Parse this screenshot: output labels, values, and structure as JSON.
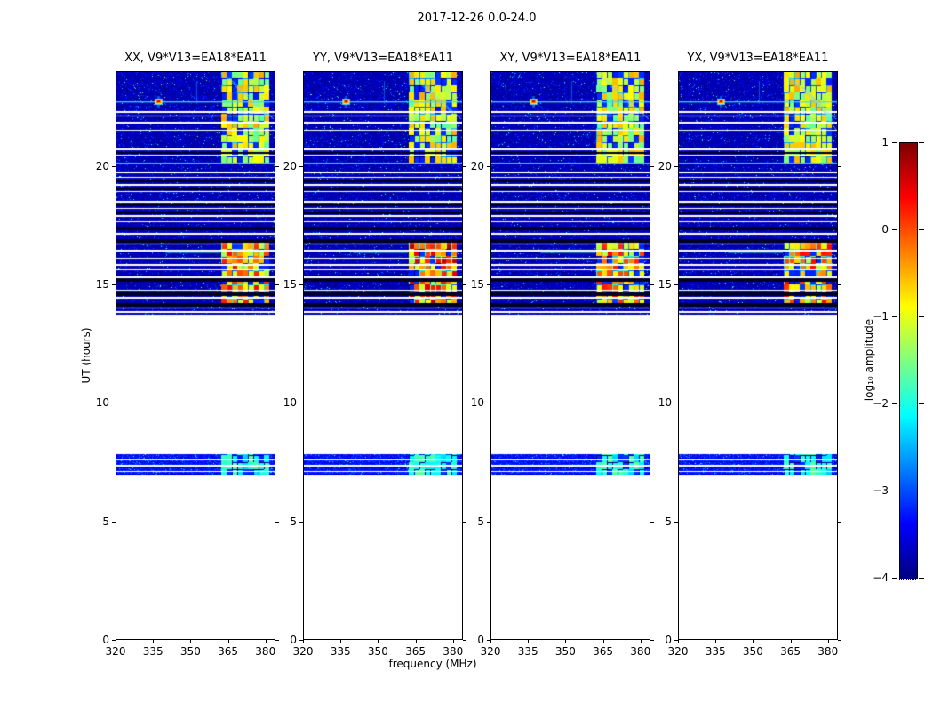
{
  "chart_data": {
    "type": "heatmap",
    "title": "2017-12-26 0.0-24.0",
    "xlabel": "frequency (MHz)",
    "ylabel": "UT (hours)",
    "x_range": [
      320,
      384
    ],
    "x_ticks": [
      "320",
      "335",
      "350",
      "365",
      "380"
    ],
    "x_tick_values": [
      320,
      335,
      350,
      365,
      380
    ],
    "y_range": [
      0,
      24
    ],
    "y_ticks": [
      "0",
      "5",
      "10",
      "15",
      "20"
    ],
    "y_tick_values": [
      0,
      5,
      10,
      15,
      20
    ],
    "grid": false,
    "colorbar": {
      "label": "log₁₀ amplitude",
      "tick_labels": [
        "1",
        "0",
        "−1",
        "−2",
        "−3",
        "−4"
      ],
      "tick_values": [
        1,
        0,
        -1,
        -2,
        -3,
        -4
      ],
      "range": [
        -4,
        1
      ],
      "colormap": "jet"
    },
    "panels": [
      {
        "title": "XX, V9*V13=EA18*EA11",
        "seed": 101
      },
      {
        "title": "YY, V9*V13=EA18*EA11",
        "seed": 202,
        "mid_boost": 0.35
      },
      {
        "title": "XY, V9*V13=EA18*EA11",
        "seed": 303
      },
      {
        "title": "YX, V9*V13=EA18*EA11",
        "seed": 404,
        "extra_diagonals": true
      }
    ],
    "features": {
      "data_time_blocks": [
        {
          "t0": 13.75,
          "t1": 24.0,
          "base": -3.75
        },
        {
          "t0": 6.95,
          "t1": 7.85,
          "base": -3.35
        }
      ],
      "rfi_bands": [
        {
          "f0": 362,
          "f1": 381.5,
          "t0": 20.15,
          "t1": 24.0,
          "level": "medium"
        },
        {
          "f0": 362,
          "f1": 381.5,
          "t0": 14.1,
          "t1": 16.9,
          "level": "strong"
        },
        {
          "f0": 362,
          "f1": 381.5,
          "t0": 6.95,
          "t1": 7.85,
          "level": "weak"
        }
      ],
      "burst": {
        "freq_mhz": 337,
        "time_h": 22.72
      },
      "cyan_lines_h": [
        22.72,
        20.15
      ],
      "cyan_segments": [
        {
          "t": 16.35,
          "f0": 340,
          "f1": 362
        }
      ],
      "vertical_streaks": [
        {
          "f": 352.5,
          "t0": 22.6,
          "t1": 23.6
        }
      ],
      "white_lines_h": [
        22.32,
        22.12,
        21.86,
        21.52,
        20.72,
        20.46,
        19.78,
        19.52,
        19.22,
        18.92,
        18.52,
        18.22,
        17.92,
        17.66,
        17.16,
        16.72,
        16.46,
        16.12,
        15.86,
        15.62,
        15.32,
        14.78,
        14.46,
        14.02,
        13.86,
        7.62,
        7.38,
        7.12
      ],
      "black_bands_h": [
        [
          20.52,
          20.62
        ],
        [
          19.32,
          19.45
        ],
        [
          18.98,
          19.1
        ],
        [
          18.32,
          18.44
        ],
        [
          17.98,
          18.1
        ],
        [
          17.3,
          17.45
        ],
        [
          16.78,
          16.92
        ],
        [
          15.12,
          15.28
        ],
        [
          14.52,
          14.68
        ],
        [
          14.1,
          14.22
        ]
      ]
    }
  }
}
